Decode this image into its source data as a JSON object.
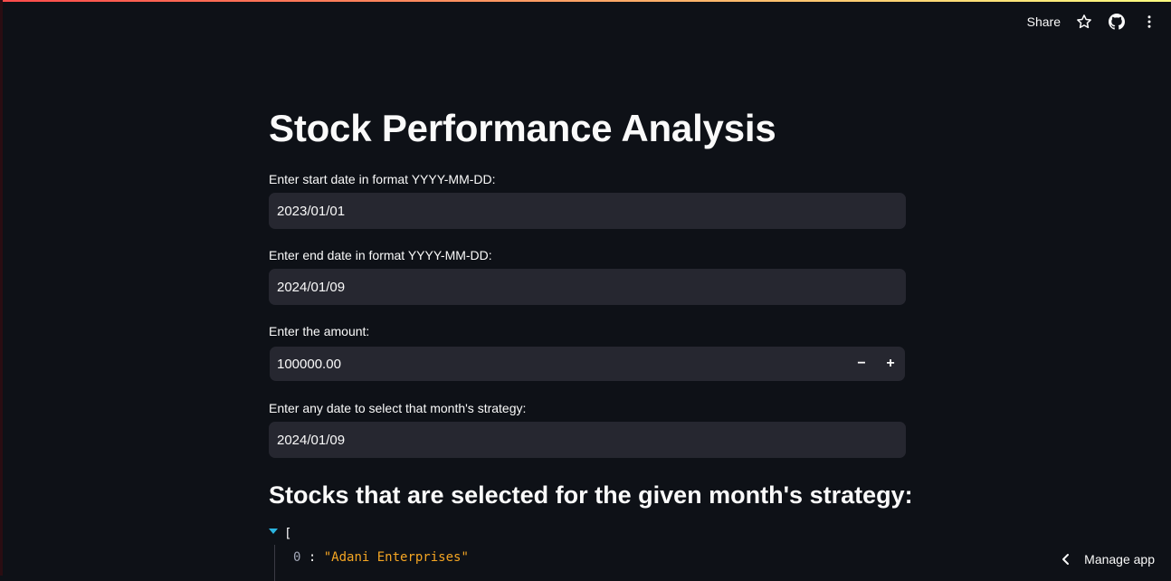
{
  "header": {
    "share_label": "Share",
    "icons": [
      "star-icon",
      "github-icon",
      "more-vertical-icon"
    ]
  },
  "main": {
    "title": "Stock Performance Analysis",
    "start_date": {
      "label": "Enter start date in format YYYY-MM-DD:",
      "value": "2023/01/01"
    },
    "end_date": {
      "label": "Enter end date in format YYYY-MM-DD:",
      "value": "2024/01/09"
    },
    "amount": {
      "label": "Enter the amount:",
      "value": "100000.00",
      "decrement": "−",
      "increment": "+"
    },
    "strategy_date": {
      "label": "Enter any date to select that month's strategy:",
      "value": "2024/01/09"
    },
    "stocks_heading": "Stocks that are selected for the given month's strategy:",
    "stocks_json": {
      "open_bracket": "[",
      "items": [
        {
          "index": "0",
          "value": "\"Adani Enterprises\""
        }
      ]
    }
  },
  "footer": {
    "manage_app_label": "Manage app"
  },
  "colors": {
    "background": "#0e1117",
    "input_bg": "#262730",
    "accent_gradient_start": "#ff4b4b",
    "accent_gradient_end": "#fffd80",
    "json_string": "#f5a623",
    "json_toggle": "#2bb5e0"
  }
}
